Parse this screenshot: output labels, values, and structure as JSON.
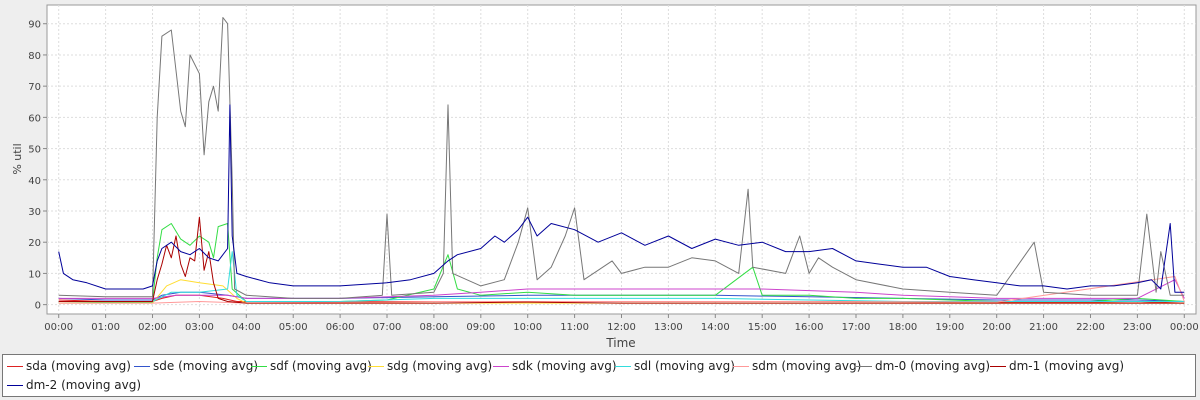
{
  "chart_data": {
    "type": "line",
    "title": "",
    "xlabel": "Time",
    "ylabel": "% util",
    "xlim": [
      -0.25,
      24.25
    ],
    "ylim": [
      -3,
      96
    ],
    "x_ticks": [
      "00:00",
      "01:00",
      "02:00",
      "03:00",
      "04:00",
      "05:00",
      "06:00",
      "07:00",
      "08:00",
      "09:00",
      "10:00",
      "11:00",
      "12:00",
      "13:00",
      "14:00",
      "15:00",
      "16:00",
      "17:00",
      "18:00",
      "19:00",
      "20:00",
      "21:00",
      "22:00",
      "23:00",
      "00:00"
    ],
    "y_ticks": [
      0,
      10,
      20,
      30,
      40,
      50,
      60,
      70,
      80,
      90
    ],
    "grid": true,
    "legend_position": "bottom",
    "series": [
      {
        "name": "sda (moving avg)",
        "color": "#dd2222",
        "points": [
          [
            0,
            1.5
          ],
          [
            1,
            1
          ],
          [
            2,
            1
          ],
          [
            2.2,
            2
          ],
          [
            2.5,
            3
          ],
          [
            2.8,
            3
          ],
          [
            3,
            3
          ],
          [
            3.5,
            2
          ],
          [
            3.8,
            1
          ],
          [
            4,
            1
          ],
          [
            6,
            1
          ],
          [
            8,
            1
          ],
          [
            10,
            1
          ],
          [
            12,
            1
          ],
          [
            14,
            1
          ],
          [
            16,
            1
          ],
          [
            18,
            1
          ],
          [
            20,
            0.8
          ],
          [
            22,
            0.8
          ],
          [
            23,
            1
          ],
          [
            24,
            0.5
          ]
        ]
      },
      {
        "name": "sde (moving avg)",
        "color": "#3355cc",
        "points": [
          [
            0,
            2
          ],
          [
            1,
            1.5
          ],
          [
            2,
            1.5
          ],
          [
            2.2,
            3
          ],
          [
            2.6,
            4
          ],
          [
            3,
            4
          ],
          [
            3.6,
            3
          ],
          [
            4,
            2
          ],
          [
            6,
            2
          ],
          [
            8,
            2.5
          ],
          [
            10,
            3
          ],
          [
            12,
            3
          ],
          [
            14,
            3
          ],
          [
            16,
            2.5
          ],
          [
            18,
            2
          ],
          [
            20,
            1.5
          ],
          [
            22,
            1.5
          ],
          [
            23,
            1.5
          ],
          [
            24,
            1
          ]
        ]
      },
      {
        "name": "sdf (moving avg)",
        "color": "#33dd44",
        "points": [
          [
            0,
            1
          ],
          [
            1,
            0.8
          ],
          [
            2,
            0.8
          ],
          [
            2.1,
            15
          ],
          [
            2.2,
            24
          ],
          [
            2.4,
            26
          ],
          [
            2.6,
            21
          ],
          [
            2.8,
            19
          ],
          [
            3,
            22
          ],
          [
            3.2,
            20
          ],
          [
            3.3,
            15
          ],
          [
            3.4,
            25
          ],
          [
            3.6,
            26
          ],
          [
            3.7,
            5
          ],
          [
            4,
            1
          ],
          [
            6,
            1
          ],
          [
            7,
            1.5
          ],
          [
            8,
            5
          ],
          [
            8.3,
            16
          ],
          [
            8.5,
            5
          ],
          [
            9,
            3
          ],
          [
            10,
            4
          ],
          [
            11,
            3
          ],
          [
            12,
            3
          ],
          [
            13,
            3
          ],
          [
            14,
            3
          ],
          [
            14.8,
            12
          ],
          [
            15,
            3
          ],
          [
            16,
            3
          ],
          [
            17,
            2
          ],
          [
            18,
            2
          ],
          [
            19,
            1.5
          ],
          [
            20,
            1
          ],
          [
            21,
            1
          ],
          [
            22,
            1
          ],
          [
            23,
            2
          ],
          [
            24,
            1
          ]
        ]
      },
      {
        "name": "sdg (moving avg)",
        "color": "#ffdd33",
        "points": [
          [
            0,
            0.5
          ],
          [
            1,
            0.5
          ],
          [
            2,
            0.5
          ],
          [
            2.3,
            6
          ],
          [
            2.6,
            8
          ],
          [
            3,
            7
          ],
          [
            3.5,
            6
          ],
          [
            3.8,
            2
          ],
          [
            4,
            0.5
          ],
          [
            8,
            0.5
          ],
          [
            12,
            0.5
          ],
          [
            16,
            0.5
          ],
          [
            20,
            0.5
          ],
          [
            24,
            0.5
          ]
        ]
      },
      {
        "name": "sdk (moving avg)",
        "color": "#cc44cc",
        "points": [
          [
            0,
            2
          ],
          [
            1,
            2
          ],
          [
            2,
            2
          ],
          [
            2.5,
            3
          ],
          [
            3,
            3
          ],
          [
            3.6,
            3
          ],
          [
            4,
            2
          ],
          [
            6,
            2
          ],
          [
            8,
            3
          ],
          [
            9,
            4
          ],
          [
            10,
            5
          ],
          [
            11,
            5
          ],
          [
            12,
            5
          ],
          [
            13,
            5
          ],
          [
            14,
            5
          ],
          [
            15,
            5
          ],
          [
            16,
            4.5
          ],
          [
            17,
            4
          ],
          [
            18,
            3
          ],
          [
            19,
            2.5
          ],
          [
            20,
            2
          ],
          [
            21,
            2
          ],
          [
            22,
            2
          ],
          [
            23,
            2
          ],
          [
            23.8,
            8
          ],
          [
            24,
            2
          ]
        ]
      },
      {
        "name": "sdl (moving avg)",
        "color": "#33dddd",
        "points": [
          [
            0,
            1
          ],
          [
            1,
            1
          ],
          [
            2,
            1
          ],
          [
            2.4,
            4
          ],
          [
            3,
            4
          ],
          [
            3.6,
            5
          ],
          [
            3.7,
            17
          ],
          [
            3.8,
            3
          ],
          [
            4,
            1
          ],
          [
            6,
            1
          ],
          [
            8,
            2
          ],
          [
            10,
            2
          ],
          [
            12,
            2
          ],
          [
            14,
            2
          ],
          [
            16,
            1.5
          ],
          [
            18,
            1
          ],
          [
            20,
            1
          ],
          [
            22,
            1
          ],
          [
            24,
            1
          ]
        ]
      },
      {
        "name": "sdm (moving avg)",
        "color": "#ff9999",
        "points": [
          [
            0,
            0.5
          ],
          [
            2,
            0.5
          ],
          [
            3,
            1
          ],
          [
            4,
            0.5
          ],
          [
            8,
            1
          ],
          [
            12,
            1
          ],
          [
            16,
            1
          ],
          [
            20,
            0.8
          ],
          [
            23.8,
            9
          ],
          [
            24,
            1
          ]
        ]
      },
      {
        "name": "dm-0 (moving avg)",
        "color": "#777777",
        "points": [
          [
            0,
            3
          ],
          [
            1,
            2.5
          ],
          [
            2,
            2.5
          ],
          [
            2.1,
            60
          ],
          [
            2.2,
            86
          ],
          [
            2.4,
            88
          ],
          [
            2.5,
            75
          ],
          [
            2.6,
            62
          ],
          [
            2.7,
            57
          ],
          [
            2.8,
            80
          ],
          [
            3,
            74
          ],
          [
            3.1,
            48
          ],
          [
            3.2,
            65
          ],
          [
            3.3,
            70
          ],
          [
            3.4,
            62
          ],
          [
            3.5,
            92
          ],
          [
            3.6,
            90
          ],
          [
            3.7,
            40
          ],
          [
            3.75,
            5
          ],
          [
            4,
            3
          ],
          [
            5,
            2
          ],
          [
            6,
            2
          ],
          [
            6.9,
            3
          ],
          [
            7,
            29
          ],
          [
            7.1,
            3
          ],
          [
            8,
            4
          ],
          [
            8.2,
            10
          ],
          [
            8.3,
            64
          ],
          [
            8.4,
            10
          ],
          [
            9,
            6
          ],
          [
            9.5,
            8
          ],
          [
            9.8,
            20
          ],
          [
            10,
            31
          ],
          [
            10.2,
            8
          ],
          [
            10.5,
            12
          ],
          [
            10.8,
            22
          ],
          [
            11,
            31
          ],
          [
            11.2,
            8
          ],
          [
            11.8,
            14
          ],
          [
            12,
            10
          ],
          [
            12.5,
            12
          ],
          [
            13,
            12
          ],
          [
            13.5,
            15
          ],
          [
            14,
            14
          ],
          [
            14.5,
            10
          ],
          [
            14.7,
            37
          ],
          [
            14.8,
            12
          ],
          [
            15.5,
            10
          ],
          [
            15.8,
            22
          ],
          [
            16,
            10
          ],
          [
            16.2,
            15
          ],
          [
            16.5,
            12
          ],
          [
            17,
            8
          ],
          [
            18,
            5
          ],
          [
            19,
            4
          ],
          [
            20,
            3
          ],
          [
            20.8,
            20
          ],
          [
            21,
            4
          ],
          [
            22,
            3
          ],
          [
            23,
            3
          ],
          [
            23.2,
            29
          ],
          [
            23.4,
            4
          ],
          [
            23.5,
            17
          ],
          [
            23.7,
            3
          ],
          [
            24,
            3
          ]
        ]
      },
      {
        "name": "dm-1 (moving avg)",
        "color": "#aa0000",
        "points": [
          [
            0,
            1
          ],
          [
            1,
            1
          ],
          [
            2,
            1
          ],
          [
            2.1,
            8
          ],
          [
            2.2,
            13
          ],
          [
            2.3,
            19
          ],
          [
            2.4,
            15
          ],
          [
            2.5,
            22
          ],
          [
            2.6,
            13
          ],
          [
            2.7,
            9
          ],
          [
            2.8,
            15
          ],
          [
            2.9,
            14
          ],
          [
            3,
            28
          ],
          [
            3.1,
            11
          ],
          [
            3.2,
            17
          ],
          [
            3.3,
            7
          ],
          [
            3.4,
            2
          ],
          [
            3.6,
            1
          ],
          [
            4,
            0.5
          ],
          [
            6,
            0.5
          ],
          [
            8,
            0.5
          ],
          [
            10,
            0.8
          ],
          [
            12,
            0.5
          ],
          [
            14,
            0.5
          ],
          [
            16,
            0.5
          ],
          [
            18,
            0.5
          ],
          [
            20,
            0.5
          ],
          [
            22,
            0.5
          ],
          [
            24,
            0.5
          ]
        ]
      },
      {
        "name": "dm-2 (moving avg)",
        "color": "#000099",
        "points": [
          [
            0,
            17
          ],
          [
            0.1,
            10
          ],
          [
            0.3,
            8
          ],
          [
            0.6,
            7
          ],
          [
            1,
            5
          ],
          [
            1.5,
            5
          ],
          [
            1.8,
            5
          ],
          [
            2,
            6
          ],
          [
            2.1,
            14
          ],
          [
            2.2,
            18
          ],
          [
            2.4,
            20
          ],
          [
            2.6,
            17
          ],
          [
            2.8,
            16
          ],
          [
            3,
            18
          ],
          [
            3.2,
            15
          ],
          [
            3.4,
            14
          ],
          [
            3.6,
            18
          ],
          [
            3.65,
            64
          ],
          [
            3.7,
            22
          ],
          [
            3.8,
            10
          ],
          [
            4,
            9
          ],
          [
            4.5,
            7
          ],
          [
            5,
            6
          ],
          [
            6,
            6
          ],
          [
            7,
            7
          ],
          [
            7.5,
            8
          ],
          [
            8,
            10
          ],
          [
            8.3,
            14
          ],
          [
            8.5,
            16
          ],
          [
            9,
            18
          ],
          [
            9.3,
            22
          ],
          [
            9.5,
            20
          ],
          [
            9.8,
            24
          ],
          [
            10,
            28
          ],
          [
            10.2,
            22
          ],
          [
            10.5,
            26
          ],
          [
            11,
            24
          ],
          [
            11.5,
            20
          ],
          [
            12,
            23
          ],
          [
            12.5,
            19
          ],
          [
            13,
            22
          ],
          [
            13.5,
            18
          ],
          [
            14,
            21
          ],
          [
            14.5,
            19
          ],
          [
            15,
            20
          ],
          [
            15.5,
            17
          ],
          [
            16,
            17
          ],
          [
            16.5,
            18
          ],
          [
            17,
            14
          ],
          [
            17.5,
            13
          ],
          [
            18,
            12
          ],
          [
            18.5,
            12
          ],
          [
            19,
            9
          ],
          [
            19.5,
            8
          ],
          [
            20,
            7
          ],
          [
            20.5,
            6
          ],
          [
            21,
            6
          ],
          [
            21.5,
            5
          ],
          [
            22,
            6
          ],
          [
            22.5,
            6
          ],
          [
            23,
            7
          ],
          [
            23.3,
            8
          ],
          [
            23.5,
            5
          ],
          [
            23.7,
            26
          ],
          [
            23.8,
            4
          ],
          [
            24,
            4
          ]
        ]
      }
    ]
  }
}
